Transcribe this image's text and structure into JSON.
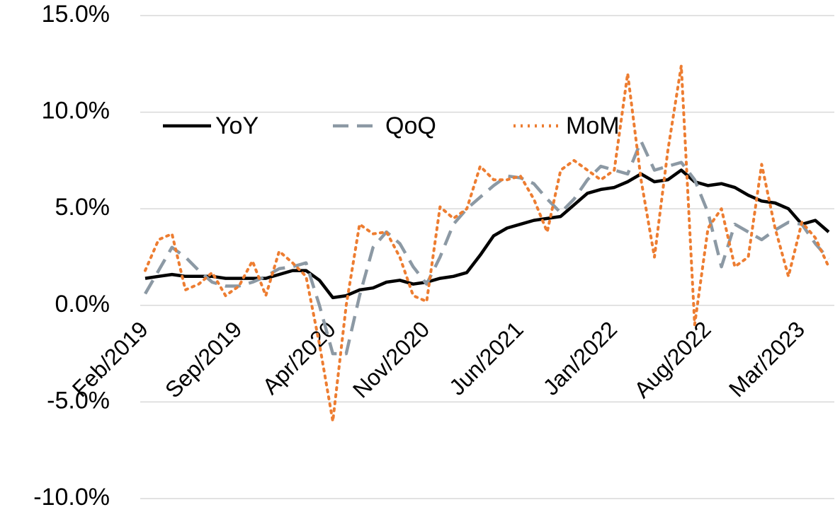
{
  "chart_data": {
    "type": "line",
    "categories": [
      "Feb/2019",
      null,
      null,
      null,
      null,
      null,
      null,
      "Sep/2019",
      null,
      null,
      null,
      null,
      null,
      null,
      "Apr/2020",
      null,
      null,
      null,
      null,
      null,
      null,
      "Nov/2020",
      null,
      null,
      null,
      null,
      null,
      null,
      "Jun/2021",
      null,
      null,
      null,
      null,
      null,
      null,
      "Jan/2022",
      null,
      null,
      null,
      null,
      null,
      null,
      "Aug/2022",
      null,
      null,
      null,
      null,
      null,
      null,
      "Mar/2023",
      null,
      null
    ],
    "series": [
      {
        "name": "YoY",
        "color": "#000000",
        "dash": "solid",
        "values": [
          1.4,
          1.5,
          1.6,
          1.5,
          1.5,
          1.5,
          1.4,
          1.4,
          1.4,
          1.4,
          1.6,
          1.8,
          1.8,
          1.3,
          0.4,
          0.5,
          0.8,
          0.9,
          1.2,
          1.3,
          1.1,
          1.2,
          1.4,
          1.5,
          1.7,
          2.6,
          3.6,
          4.0,
          4.2,
          4.4,
          4.5,
          4.6,
          5.2,
          5.8,
          6.0,
          6.1,
          6.4,
          6.8,
          6.4,
          6.5,
          7.0,
          6.4,
          6.2,
          6.3,
          6.1,
          5.7,
          5.4,
          5.3,
          5.0,
          4.2,
          4.4,
          3.8
        ]
      },
      {
        "name": "QoQ",
        "color": "#8c99a4",
        "dash": "dashed",
        "values": [
          0.6,
          1.8,
          3.0,
          2.5,
          1.8,
          1.2,
          1.0,
          1.0,
          1.2,
          1.5,
          1.9,
          2.0,
          2.2,
          0.0,
          -2.5,
          -2.5,
          0.5,
          3.0,
          3.8,
          3.2,
          2.0,
          1.1,
          2.5,
          4.2,
          5.0,
          5.6,
          6.2,
          6.7,
          6.6,
          6.3,
          5.5,
          4.8,
          5.5,
          6.5,
          7.2,
          7.0,
          6.8,
          8.5,
          7.0,
          7.2,
          7.4,
          6.5,
          4.8,
          2.0,
          4.2,
          3.8,
          3.4,
          3.9,
          4.3,
          4.2,
          3.2,
          2.4
        ]
      },
      {
        "name": "MoM",
        "color": "#ed7d31",
        "dash": "dotted",
        "values": [
          1.8,
          3.4,
          3.7,
          0.8,
          1.1,
          1.7,
          0.5,
          1.0,
          2.3,
          0.5,
          2.8,
          2.2,
          1.5,
          -2.0,
          -6.0,
          0.0,
          4.2,
          3.7,
          3.8,
          2.5,
          0.5,
          0.2,
          5.1,
          4.5,
          5.0,
          7.2,
          6.5,
          6.5,
          6.7,
          5.5,
          3.8,
          7.0,
          7.5,
          7.0,
          6.5,
          7.0,
          12.0,
          6.5,
          2.5,
          8.0,
          12.4,
          -1.0,
          4.0,
          5.0,
          2.0,
          2.5,
          7.3,
          4.0,
          1.5,
          4.3,
          3.5,
          2.0
        ]
      }
    ],
    "ylim": [
      -10,
      15
    ],
    "yticks": [
      {
        "value": -10,
        "label": "-10.0%"
      },
      {
        "value": -5,
        "label": "-5.0%"
      },
      {
        "value": 0,
        "label": "0.0%"
      },
      {
        "value": 5,
        "label": "5.0%"
      },
      {
        "value": 10,
        "label": "10.0%"
      },
      {
        "value": 15,
        "label": "15.0%"
      }
    ],
    "grid": true,
    "legend": "top"
  }
}
